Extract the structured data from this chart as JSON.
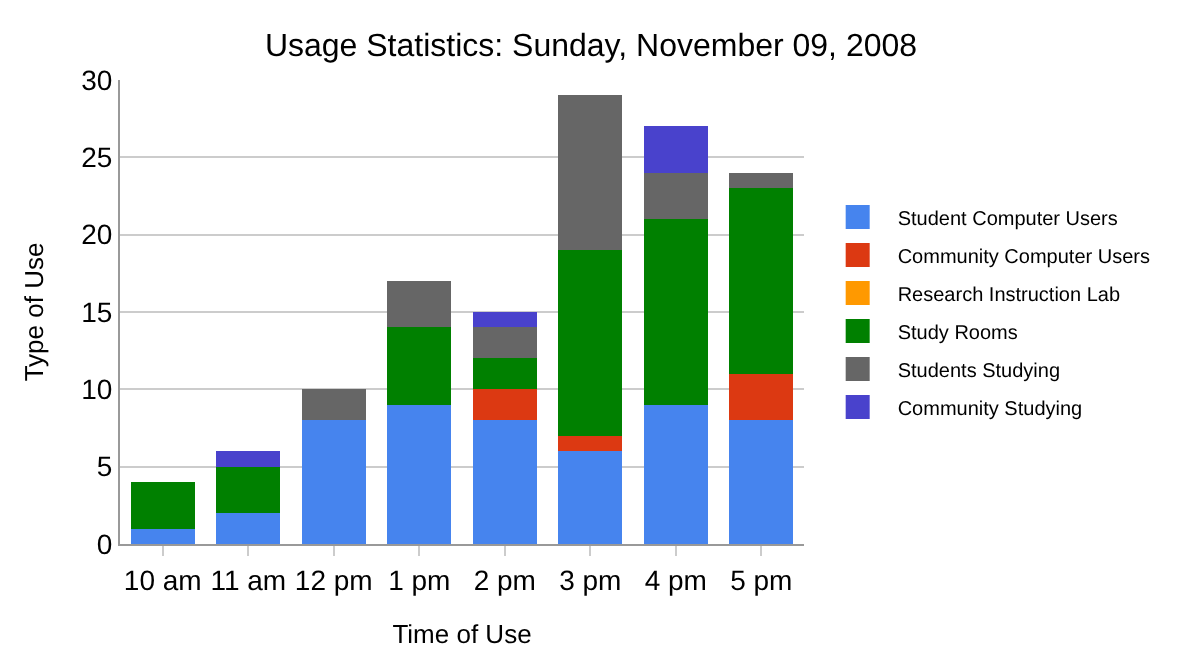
{
  "chart_data": {
    "type": "bar",
    "title": "Usage Statistics: Sunday, November 09, 2008",
    "xlabel": "Time of Use",
    "ylabel": "Type of Use",
    "categories": [
      "10 am",
      "11 am",
      "12 pm",
      "1 pm",
      "2 pm",
      "3 pm",
      "4 pm",
      "5 pm"
    ],
    "stacked": true,
    "ylim": [
      0,
      30
    ],
    "yticks": [
      0,
      5,
      10,
      15,
      20,
      25,
      30
    ],
    "grid": "y",
    "legend": "right",
    "series": [
      {
        "name": "Student Computer Users",
        "color": "#4684ee",
        "values": [
          1,
          2,
          8,
          9,
          8,
          6,
          9,
          8
        ]
      },
      {
        "name": "Community Computer Users",
        "color": "#dc3912",
        "values": [
          0,
          0,
          0,
          0,
          2,
          1,
          0,
          3
        ]
      },
      {
        "name": "Research Instruction Lab",
        "color": "#ff9900",
        "values": [
          0,
          0,
          0,
          0,
          0,
          0,
          0,
          0
        ]
      },
      {
        "name": "Study Rooms",
        "color": "#008000",
        "values": [
          3,
          3,
          0,
          5,
          2,
          12,
          12,
          12
        ]
      },
      {
        "name": "Students Studying",
        "color": "#666666",
        "values": [
          0,
          0,
          2,
          3,
          2,
          10,
          3,
          1
        ]
      },
      {
        "name": "Community Studying",
        "color": "#4942cc",
        "values": [
          0,
          1,
          0,
          0,
          1,
          0,
          3,
          0
        ]
      }
    ]
  }
}
